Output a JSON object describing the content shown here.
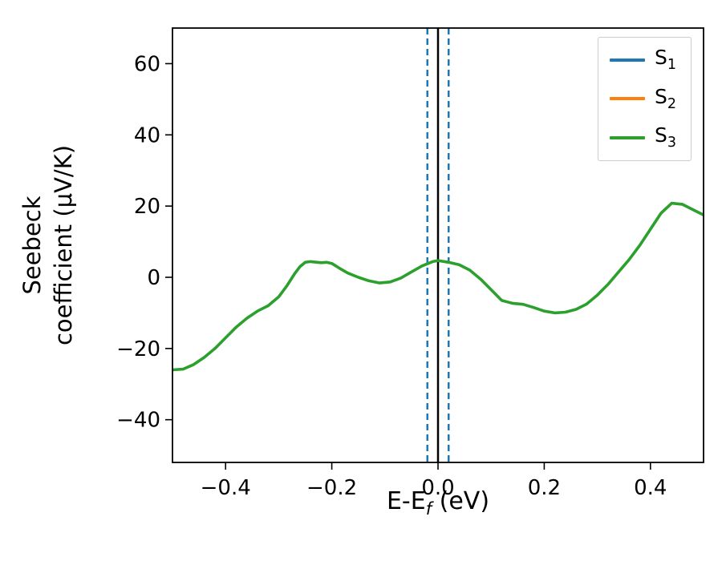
{
  "chart_data": {
    "type": "line",
    "title": "",
    "xlabel": "E-E_f (eV)",
    "ylabel": "Seebeck coefficient (μV/K)",
    "xlim": [
      -0.5,
      0.5
    ],
    "ylim": [
      -52,
      70
    ],
    "xticks": [
      -0.4,
      -0.2,
      0.0,
      0.2,
      0.4
    ],
    "yticks": [
      -40,
      -20,
      0,
      20,
      40,
      60
    ],
    "grid": false,
    "legend_position": "upper right",
    "series": [
      {
        "name": "S1",
        "color": "#1f77b4",
        "style": "vline-dashed",
        "x_positions": [
          -0.02,
          0.02
        ]
      },
      {
        "name": "S2",
        "color": "#ff7f0e",
        "style": "vline-dashed",
        "x_positions": [
          -0.02,
          0.02
        ]
      },
      {
        "name": "S3",
        "color": "#2ca02c",
        "style": "curve",
        "points": [
          [
            -0.5,
            -26.0
          ],
          [
            -0.48,
            -25.8
          ],
          [
            -0.46,
            -24.5
          ],
          [
            -0.44,
            -22.5
          ],
          [
            -0.42,
            -20.0
          ],
          [
            -0.4,
            -17.0
          ],
          [
            -0.38,
            -14.0
          ],
          [
            -0.36,
            -11.5
          ],
          [
            -0.34,
            -9.5
          ],
          [
            -0.32,
            -8.0
          ],
          [
            -0.3,
            -5.5
          ],
          [
            -0.285,
            -2.5
          ],
          [
            -0.27,
            1.0
          ],
          [
            -0.26,
            3.0
          ],
          [
            -0.25,
            4.2
          ],
          [
            -0.24,
            4.4
          ],
          [
            -0.22,
            4.1
          ],
          [
            -0.21,
            4.2
          ],
          [
            -0.2,
            3.9
          ],
          [
            -0.185,
            2.5
          ],
          [
            -0.17,
            1.2
          ],
          [
            -0.15,
            0.0
          ],
          [
            -0.13,
            -1.0
          ],
          [
            -0.11,
            -1.6
          ],
          [
            -0.09,
            -1.3
          ],
          [
            -0.07,
            -0.2
          ],
          [
            -0.05,
            1.5
          ],
          [
            -0.03,
            3.2
          ],
          [
            -0.01,
            4.4
          ],
          [
            0.0,
            4.7
          ],
          [
            0.02,
            4.2
          ],
          [
            0.04,
            3.5
          ],
          [
            0.06,
            2.0
          ],
          [
            0.08,
            -0.5
          ],
          [
            0.1,
            -3.5
          ],
          [
            0.12,
            -6.5
          ],
          [
            0.14,
            -7.3
          ],
          [
            0.16,
            -7.6
          ],
          [
            0.18,
            -8.5
          ],
          [
            0.2,
            -9.5
          ],
          [
            0.22,
            -10.0
          ],
          [
            0.24,
            -9.8
          ],
          [
            0.26,
            -9.0
          ],
          [
            0.28,
            -7.5
          ],
          [
            0.3,
            -5.0
          ],
          [
            0.32,
            -2.0
          ],
          [
            0.34,
            1.5
          ],
          [
            0.36,
            5.0
          ],
          [
            0.38,
            9.0
          ],
          [
            0.4,
            13.5
          ],
          [
            0.42,
            18.0
          ],
          [
            0.44,
            20.8
          ],
          [
            0.46,
            20.5
          ],
          [
            0.48,
            19.0
          ],
          [
            0.5,
            17.5
          ]
        ]
      }
    ],
    "reference_line": {
      "x": 0.0,
      "color": "#000000",
      "style": "solid"
    }
  },
  "labels": {
    "ylabel_line1": "Seebeck",
    "ylabel_line2": "coefficient (μV/K)",
    "xlabel_main": "E-E",
    "xlabel_sub": "f",
    "xlabel_rest": " (eV)"
  },
  "legend": {
    "entries": [
      {
        "base": "S",
        "sub": "1"
      },
      {
        "base": "S",
        "sub": "2"
      },
      {
        "base": "S",
        "sub": "3"
      }
    ]
  }
}
